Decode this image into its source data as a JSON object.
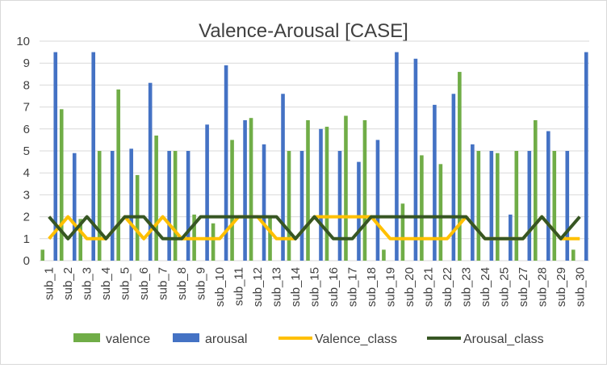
{
  "chart_data": {
    "type": "bar",
    "title": "Valence-Arousal [CASE]",
    "xlabel": "",
    "ylabel": "",
    "ylim": [
      0,
      10
    ],
    "yticks": [
      0,
      1,
      2,
      3,
      4,
      5,
      6,
      7,
      8,
      9,
      10
    ],
    "grid": true,
    "legend_position": "bottom",
    "categories": [
      "sub_1",
      "sub_2",
      "sub_3",
      "sub_4",
      "sub_5",
      "sub_6",
      "sub_7",
      "sub_8",
      "sub_9",
      "sub_10",
      "sub_11",
      "sub_12",
      "sub_13",
      "sub_14",
      "sub_15",
      "sub_16",
      "sub_17",
      "sub_18",
      "sub_19",
      "sub_20",
      "sub_21",
      "sub_22",
      "sub_23",
      "sub_24",
      "sub_25",
      "sub_27",
      "sub_28",
      "sub_29",
      "sub_30"
    ],
    "series": [
      {
        "name": "valence",
        "kind": "bar",
        "color": "#70ad47",
        "values": [
          0.5,
          6.9,
          1.9,
          5.0,
          7.8,
          3.9,
          5.7,
          5.0,
          2.1,
          1.7,
          5.5,
          6.5,
          2.0,
          5.0,
          6.4,
          6.1,
          6.6,
          6.4,
          0.5,
          2.6,
          4.8,
          4.4,
          8.6,
          5.0,
          4.9,
          5.0,
          6.4,
          5.0,
          0.5
        ]
      },
      {
        "name": "arousal",
        "kind": "bar",
        "color": "#4472c4",
        "values": [
          9.5,
          4.9,
          9.5,
          5.0,
          5.1,
          8.1,
          5.0,
          5.0,
          6.2,
          8.9,
          6.4,
          5.3,
          7.6,
          5.0,
          6.0,
          5.0,
          4.5,
          5.5,
          9.5,
          9.2,
          7.1,
          7.6,
          5.3,
          5.0,
          2.1,
          5.0,
          5.9,
          5.0,
          9.5
        ]
      },
      {
        "name": "Valence_class",
        "kind": "line",
        "color": "#ffc000",
        "values": [
          1,
          2,
          1,
          1,
          2,
          1,
          2,
          1,
          1,
          1,
          2,
          2,
          1,
          1,
          2,
          2,
          2,
          2,
          1,
          1,
          1,
          1,
          2,
          1,
          1,
          1,
          2,
          1,
          1
        ]
      },
      {
        "name": "Arousal_class",
        "kind": "line",
        "color": "#375623",
        "values": [
          2,
          1,
          2,
          1,
          2,
          2,
          1,
          1,
          2,
          2,
          2,
          2,
          2,
          1,
          2,
          1,
          1,
          2,
          2,
          2,
          2,
          2,
          2,
          1,
          1,
          1,
          2,
          1,
          2
        ]
      }
    ]
  }
}
